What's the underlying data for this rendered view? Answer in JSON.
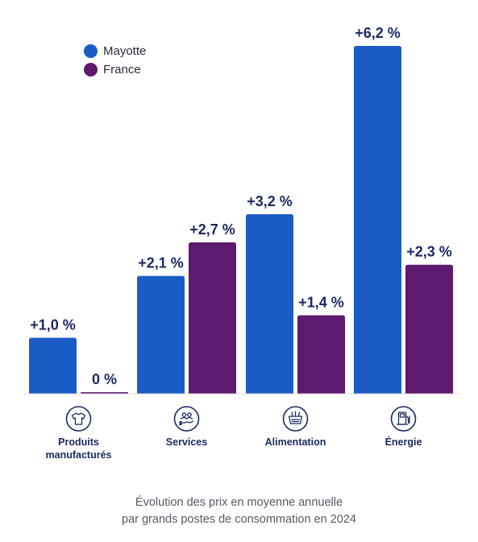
{
  "chart_data": {
    "type": "bar",
    "categories": [
      "Produits manufacturés",
      "Services",
      "Alimentation",
      "Énergie"
    ],
    "category_label_lines": [
      [
        "Produits",
        "manufacturés"
      ],
      [
        "Services"
      ],
      [
        "Alimentation"
      ],
      [
        "Énergie"
      ]
    ],
    "category_icons": [
      "tshirt-icon",
      "people-service-icon",
      "shopping-basket-icon",
      "fuel-pump-icon"
    ],
    "series": [
      {
        "name": "Mayotte",
        "color": "#1b5bc6",
        "values": [
          1.0,
          2.1,
          3.2,
          6.2
        ],
        "labels": [
          "+1,0 %",
          "+2,1 %",
          "+3,2 %",
          "+6,2 %"
        ]
      },
      {
        "name": "France",
        "color": "#5e1a6e",
        "values": [
          0.0,
          2.7,
          1.4,
          2.3
        ],
        "labels": [
          "0 %",
          "+2,7 %",
          "+1,4 %",
          "+2,3 %"
        ]
      }
    ],
    "unit": "%",
    "ylim": [
      0,
      6.2
    ],
    "grid": false,
    "legend_position": "top-left",
    "caption_lines": [
      "Évolution des prix en moyenne annuelle",
      "par grands postes de consommation en 2024"
    ]
  }
}
